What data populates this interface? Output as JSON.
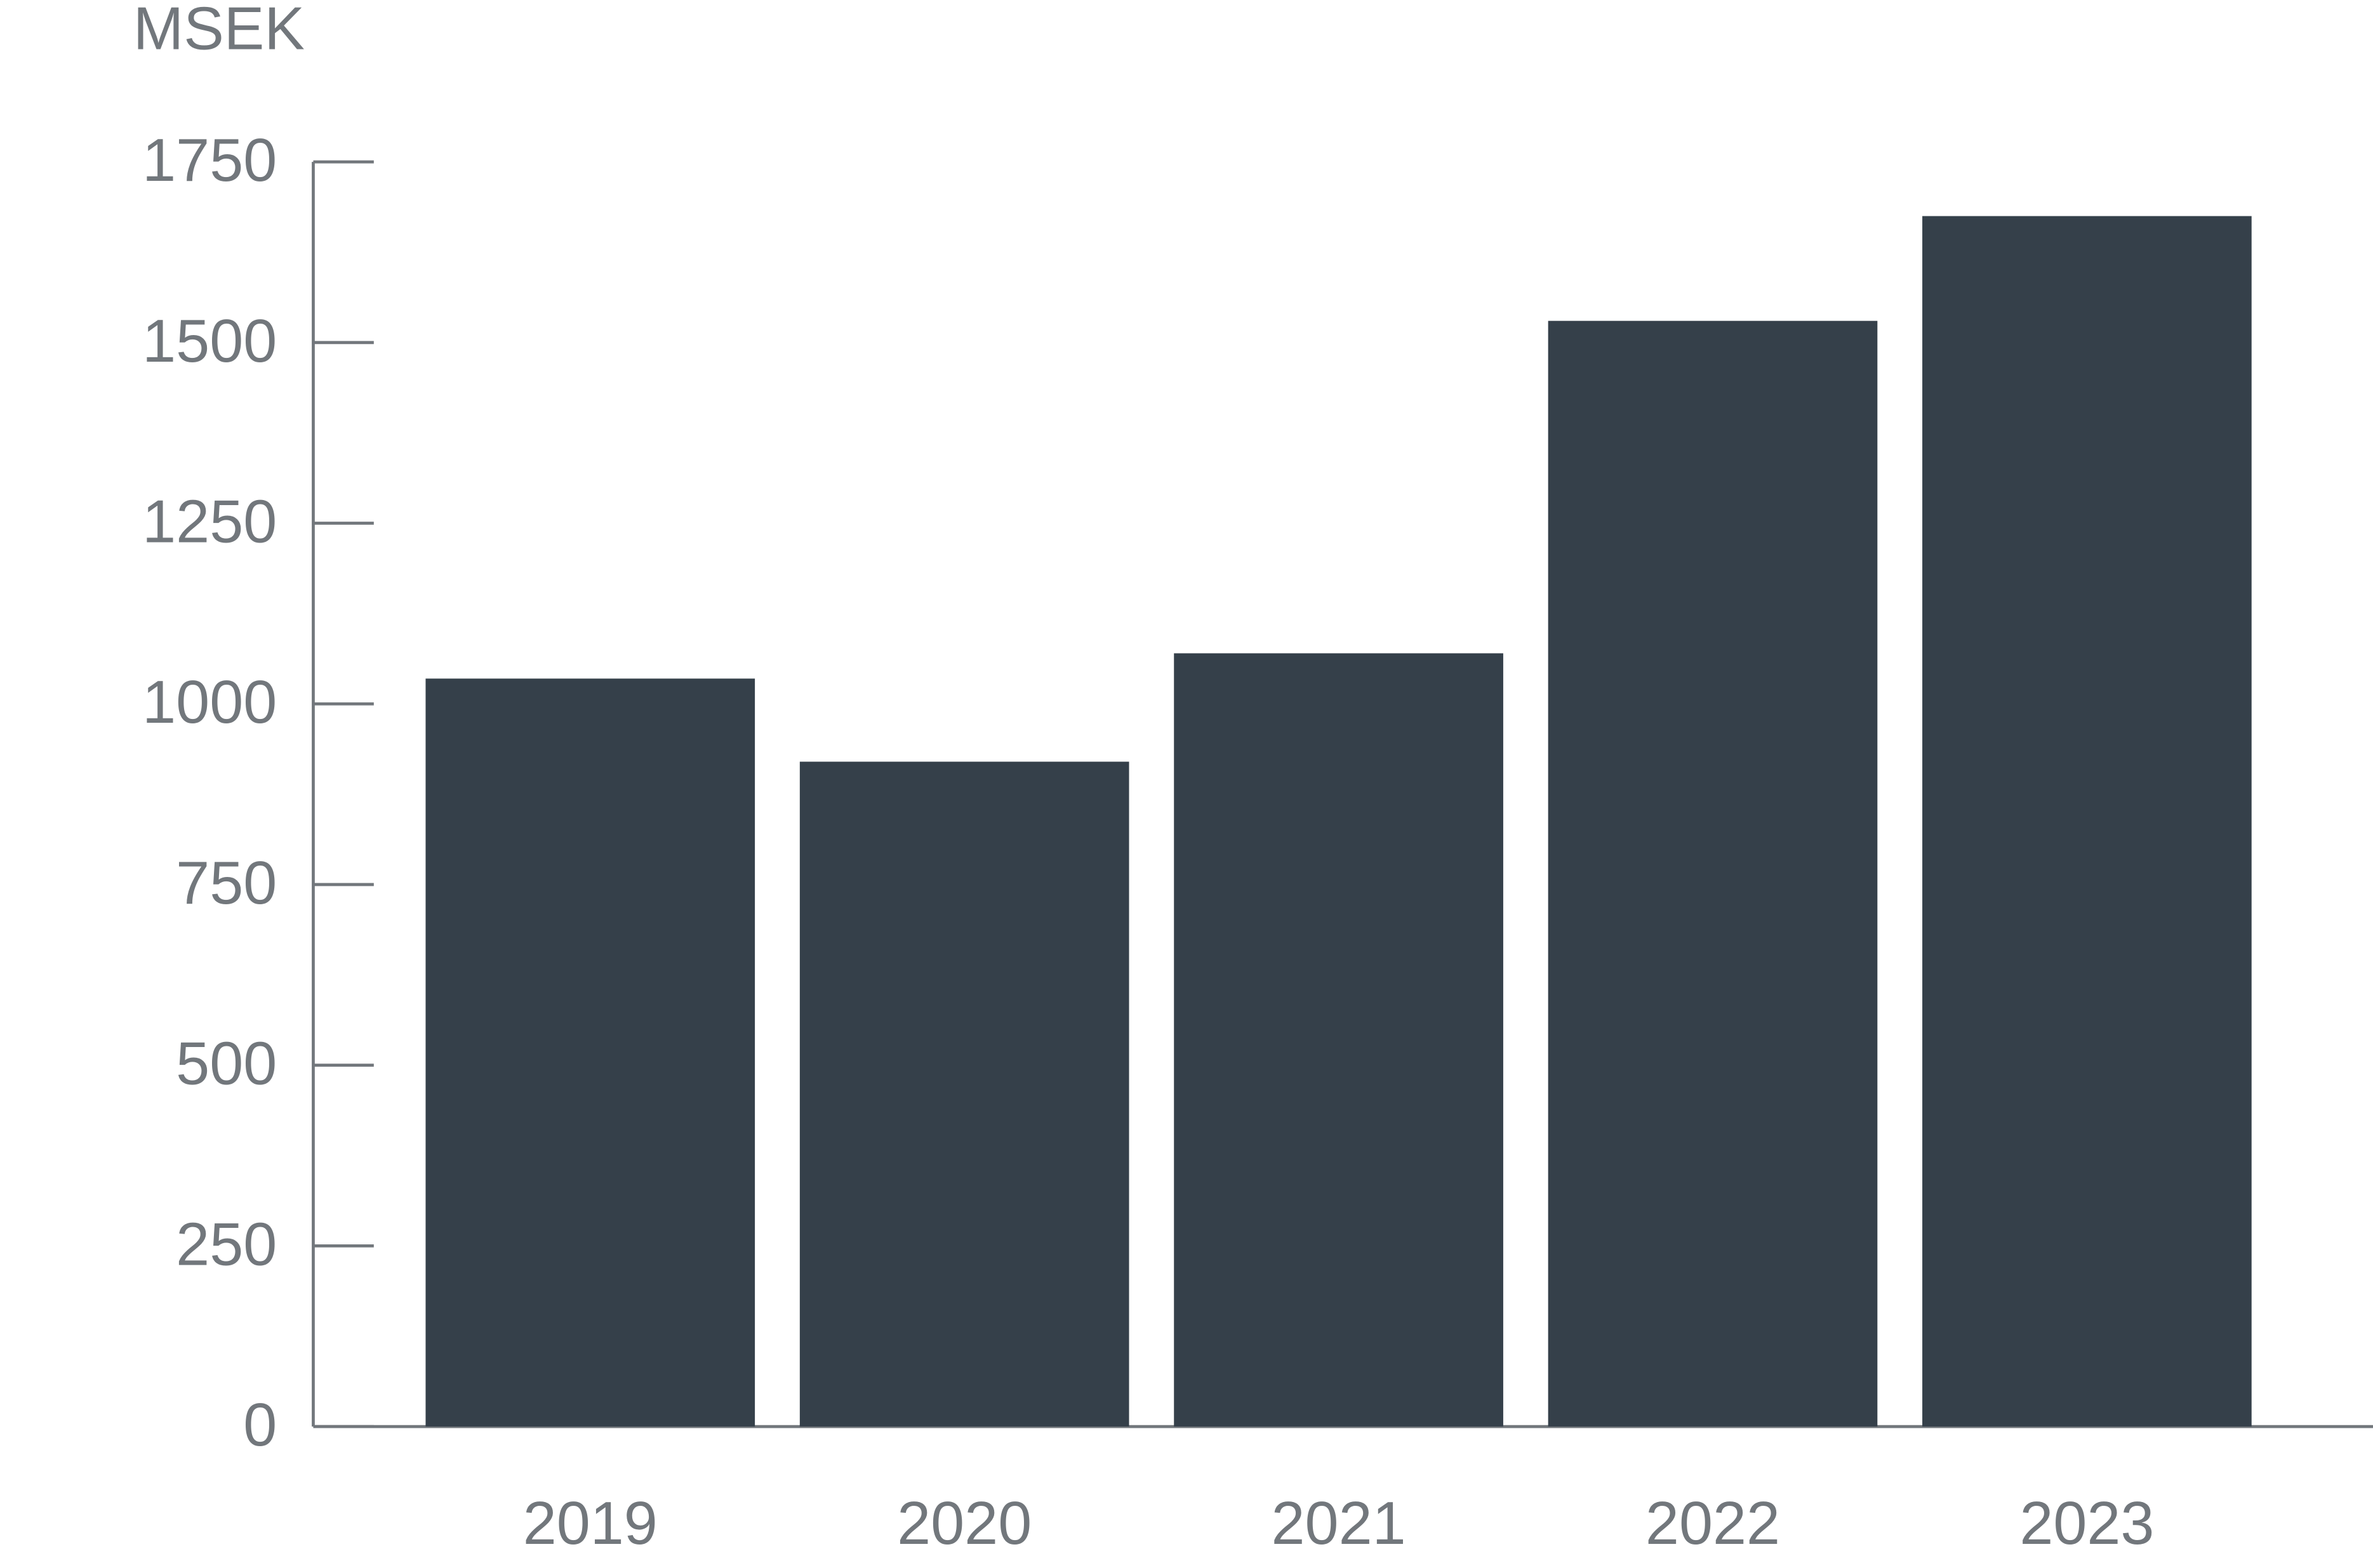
{
  "chart_data": {
    "type": "bar",
    "y_label": "MSEK",
    "categories": [
      "2019",
      "2020",
      "2021",
      "2022",
      "2023"
    ],
    "values": [
      1035,
      920,
      1070,
      1530,
      1675
    ],
    "color": "#35404a",
    "ylim": [
      0,
      1750
    ],
    "yticks": [
      0,
      250,
      500,
      750,
      1000,
      1250,
      1500,
      1750
    ],
    "grid": false
  }
}
